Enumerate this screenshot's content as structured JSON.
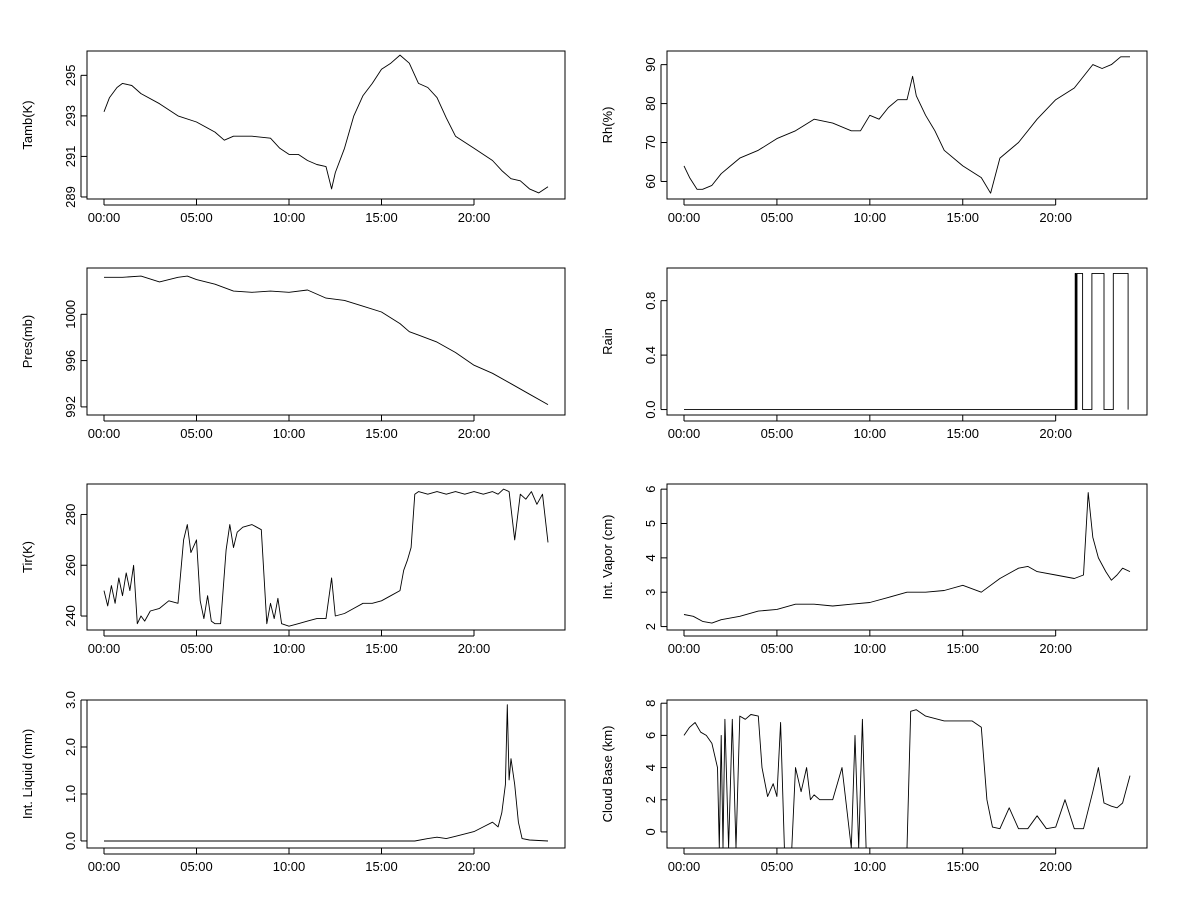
{
  "chart_data": [
    {
      "type": "line",
      "ylabel": "Tamb(K)",
      "x_ticks": [
        "00:00",
        "05:00",
        "10:00",
        "15:00",
        "20:00"
      ],
      "y_ticks": [
        "289",
        "291",
        "293",
        "295"
      ],
      "y_tick_values": [
        289,
        291,
        293,
        295
      ],
      "ylim": [
        288.9,
        296.2
      ],
      "x_range_hours": [
        0,
        24
      ],
      "series": [
        {
          "x": [
            0,
            0.3,
            0.7,
            1,
            1.5,
            2,
            3,
            4,
            5,
            6,
            6.5,
            7,
            8,
            9,
            9.5,
            10,
            10.5,
            11,
            11.5,
            12,
            12.3,
            12.5,
            13,
            13.5,
            14,
            14.5,
            15,
            15.5,
            16,
            16.5,
            17,
            17.5,
            18,
            18.5,
            19,
            20,
            21,
            21.5,
            22,
            22.5,
            23,
            23.5,
            24
          ],
          "y": [
            293.2,
            293.9,
            294.4,
            294.6,
            294.5,
            294.1,
            293.6,
            293.0,
            292.7,
            292.2,
            291.8,
            292.0,
            292.0,
            291.9,
            291.4,
            291.1,
            291.1,
            290.8,
            290.6,
            290.5,
            289.4,
            290.2,
            291.4,
            293.0,
            294.0,
            294.6,
            295.3,
            295.6,
            296.0,
            295.6,
            294.6,
            294.4,
            293.9,
            292.9,
            292.0,
            291.4,
            290.8,
            290.3,
            289.9,
            289.8,
            289.4,
            289.2,
            289.5
          ]
        }
      ]
    },
    {
      "type": "line",
      "ylabel": "Rh(%)",
      "x_ticks": [
        "00:00",
        "05:00",
        "10:00",
        "15:00",
        "20:00"
      ],
      "y_ticks": [
        "60",
        "70",
        "80",
        "90"
      ],
      "y_tick_values": [
        60,
        70,
        80,
        90
      ],
      "ylim": [
        55.5,
        93.5
      ],
      "x_range_hours": [
        0,
        24
      ],
      "series": [
        {
          "x": [
            0,
            0.3,
            0.7,
            1,
            1.5,
            2,
            2.5,
            3,
            4,
            5,
            6,
            7,
            8,
            9,
            9.5,
            10,
            10.5,
            11,
            11.5,
            12,
            12.3,
            12.5,
            13,
            13.5,
            14,
            15,
            16,
            16.5,
            17,
            18,
            19,
            20,
            21,
            22,
            22.5,
            23,
            23.5,
            24
          ],
          "y": [
            64,
            61,
            58,
            58,
            59,
            62,
            64,
            66,
            68,
            71,
            73,
            76,
            75,
            73,
            73,
            77,
            76,
            79,
            81,
            81,
            87,
            82,
            77,
            73,
            68,
            64,
            61,
            57,
            66,
            70,
            76,
            81,
            84,
            90,
            89,
            90,
            92,
            92
          ]
        }
      ]
    },
    {
      "type": "line",
      "ylabel": "Pres(mb)",
      "x_ticks": [
        "00:00",
        "05:00",
        "10:00",
        "15:00",
        "20:00"
      ],
      "y_ticks": [
        "992",
        "996",
        "1000"
      ],
      "y_tick_values": [
        992,
        996,
        1000
      ],
      "ylim": [
        991.3,
        1004.0
      ],
      "x_range_hours": [
        0,
        24
      ],
      "series": [
        {
          "x": [
            0,
            1,
            2,
            3,
            4,
            4.5,
            5,
            6,
            7,
            8,
            9,
            10,
            11,
            12,
            13,
            14,
            15,
            16,
            16.5,
            17,
            18,
            19,
            20,
            21,
            22,
            23,
            24
          ],
          "y": [
            1003.2,
            1003.2,
            1003.3,
            1002.8,
            1003.2,
            1003.3,
            1003.0,
            1002.6,
            1002.0,
            1001.9,
            1002.0,
            1001.9,
            1002.1,
            1001.4,
            1001.2,
            1000.7,
            1000.2,
            999.2,
            998.5,
            998.2,
            997.6,
            996.7,
            995.6,
            994.9,
            994.0,
            993.1,
            992.2
          ]
        }
      ]
    },
    {
      "type": "line",
      "ylabel": "Rain",
      "x_ticks": [
        "00:00",
        "05:00",
        "10:00",
        "15:00",
        "20:00"
      ],
      "y_ticks": [
        "0.0",
        "0.4",
        "0.8"
      ],
      "y_tick_values": [
        0,
        0.4,
        0.8
      ],
      "ylim": [
        -0.04,
        1.04
      ],
      "x_range_hours": [
        0,
        24
      ],
      "series": [
        {
          "x": [
            0,
            21.05,
            21.05,
            21.1,
            21.1,
            21.15,
            21.15,
            21.45,
            21.45,
            21.95,
            21.95,
            22.6,
            22.6,
            23.1,
            23.1,
            23.9,
            23.9
          ],
          "y": [
            0,
            0,
            1,
            1,
            0,
            0,
            1,
            1,
            0,
            0,
            1,
            1,
            0,
            0,
            1,
            1,
            0
          ]
        }
      ]
    },
    {
      "type": "line",
      "ylabel": "Tir(K)",
      "x_ticks": [
        "00:00",
        "05:00",
        "10:00",
        "15:00",
        "20:00"
      ],
      "y_ticks": [
        "240",
        "260",
        "280"
      ],
      "y_tick_values": [
        240,
        260,
        280
      ],
      "ylim": [
        234.5,
        292.0
      ],
      "x_range_hours": [
        0,
        24
      ],
      "series": [
        {
          "x": [
            0,
            0.2,
            0.4,
            0.6,
            0.8,
            1.0,
            1.2,
            1.4,
            1.6,
            1.8,
            2.0,
            2.2,
            2.5,
            3.0,
            3.5,
            4.0,
            4.3,
            4.5,
            4.7,
            5.0,
            5.2,
            5.4,
            5.6,
            5.8,
            6.0,
            6.3,
            6.6,
            6.8,
            7.0,
            7.2,
            7.5,
            8.0,
            8.5,
            8.8,
            9.0,
            9.2,
            9.4,
            9.6,
            10.0,
            10.5,
            11,
            11.5,
            12,
            12.3,
            12.5,
            13,
            13.5,
            14,
            14.5,
            15,
            15.5,
            16,
            16.2,
            16.4,
            16.6,
            16.8,
            17.0,
            17.5,
            18,
            18.5,
            19,
            19.5,
            20,
            20.5,
            21,
            21.3,
            21.6,
            21.9,
            22.2,
            22.5,
            22.8,
            23.1,
            23.4,
            23.7,
            24
          ],
          "y": [
            250,
            244,
            252,
            245,
            255,
            248,
            257,
            250,
            260,
            237,
            240,
            238,
            242,
            243,
            246,
            245,
            270,
            276,
            265,
            270,
            246,
            239,
            248,
            238,
            237,
            237,
            266,
            276,
            267,
            273,
            275,
            276,
            274,
            237,
            245,
            239,
            247,
            237,
            236,
            237,
            238,
            239,
            239,
            255,
            240,
            241,
            243,
            245,
            245,
            246,
            248,
            250,
            258,
            262,
            267,
            288,
            289,
            288,
            289,
            288,
            289,
            288,
            289,
            288,
            289,
            288,
            290,
            289,
            270,
            288,
            286,
            289,
            284,
            288,
            269
          ]
        }
      ]
    },
    {
      "type": "line",
      "ylabel": "Int. Vapor (cm)",
      "x_ticks": [
        "00:00",
        "05:00",
        "10:00",
        "15:00",
        "20:00"
      ],
      "y_ticks": [
        "2",
        "3",
        "4",
        "5",
        "6"
      ],
      "y_tick_values": [
        2,
        3,
        4,
        5,
        6
      ],
      "ylim": [
        1.9,
        6.15
      ],
      "x_range_hours": [
        0,
        24
      ],
      "series": [
        {
          "x": [
            0,
            0.5,
            1,
            1.5,
            2,
            3,
            4,
            5,
            6,
            7,
            8,
            9,
            10,
            11,
            12,
            13,
            14,
            15,
            16,
            17,
            18,
            18.5,
            19,
            20,
            21,
            21.5,
            21.75,
            22.0,
            22.3,
            22.7,
            23.0,
            23.3,
            23.6,
            24
          ],
          "y": [
            2.35,
            2.3,
            2.15,
            2.1,
            2.2,
            2.3,
            2.45,
            2.5,
            2.65,
            2.65,
            2.6,
            2.65,
            2.7,
            2.85,
            3.0,
            3.0,
            3.05,
            3.2,
            3.0,
            3.4,
            3.7,
            3.75,
            3.6,
            3.5,
            3.4,
            3.5,
            5.9,
            4.6,
            4.0,
            3.6,
            3.35,
            3.5,
            3.7,
            3.6
          ]
        }
      ]
    },
    {
      "type": "line",
      "ylabel": "Int. Liquid (mm)",
      "x_ticks": [
        "00:00",
        "05:00",
        "10:00",
        "15:00",
        "20:00"
      ],
      "y_ticks": [
        "0.0",
        "1.0",
        "2.0",
        "3.0"
      ],
      "y_tick_values": [
        0,
        1,
        2,
        3
      ],
      "ylim": [
        -0.15,
        3.0
      ],
      "x_range_hours": [
        0,
        24
      ],
      "series": [
        {
          "x": [
            0,
            16.8,
            17.5,
            18,
            18.5,
            19,
            19.5,
            20,
            20.5,
            21,
            21.3,
            21.5,
            21.7,
            21.8,
            21.9,
            22.0,
            22.2,
            22.4,
            22.6,
            23,
            24
          ],
          "y": [
            0,
            0,
            0.05,
            0.08,
            0.05,
            0.1,
            0.15,
            0.2,
            0.3,
            0.4,
            0.3,
            0.6,
            1.2,
            2.9,
            1.3,
            1.75,
            1.2,
            0.4,
            0.05,
            0.02,
            0
          ]
        }
      ]
    },
    {
      "type": "line",
      "ylabel": "Cloud Base (km)",
      "x_ticks": [
        "00:00",
        "05:00",
        "10:00",
        "15:00",
        "20:00"
      ],
      "y_ticks": [
        "0",
        "2",
        "4",
        "6",
        "8"
      ],
      "y_tick_values": [
        0,
        2,
        4,
        6,
        8
      ],
      "ylim": [
        -1.0,
        8.2
      ],
      "x_range_hours": [
        0,
        24
      ],
      "series": [
        {
          "x": [
            0,
            0.3,
            0.6,
            0.9,
            1.2,
            1.5,
            1.8,
            1.9,
            2.0,
            2.1,
            2.2,
            2.4,
            2.6,
            2.8,
            3.0,
            3.3,
            3.6,
            4.0,
            4.2,
            4.5,
            4.8,
            5.0,
            5.2,
            5.4,
            5.6,
            5.8,
            6.0,
            6.3,
            6.6,
            6.8,
            7.0,
            7.3,
            7.6,
            8.0,
            8.5,
            9.0,
            9.2,
            9.4,
            9.6,
            9.8,
            10.0,
            11.0,
            12.0,
            12.2,
            12.5,
            13.0,
            14.0,
            15.0,
            15.5,
            16.0,
            16.3,
            16.6,
            17.0,
            17.5,
            18.0,
            18.5,
            19.0,
            19.5,
            20.0,
            20.5,
            21.0,
            21.5,
            22.0,
            22.3,
            22.6,
            23.0,
            23.3,
            23.6,
            24.0
          ],
          "y": [
            6.0,
            6.5,
            6.8,
            6.2,
            6.0,
            5.5,
            4.0,
            -1.0,
            6.0,
            -1.0,
            7.0,
            -1.0,
            7.0,
            -1.0,
            7.2,
            7.0,
            7.3,
            7.2,
            4.0,
            2.2,
            3.0,
            2.2,
            6.8,
            -1.0,
            -1.0,
            -1.0,
            4.0,
            2.5,
            4.0,
            2.0,
            2.3,
            2.0,
            2.0,
            2.0,
            4.0,
            -1.0,
            6.0,
            -1.0,
            7.0,
            -1.0,
            -1.0,
            -1.0,
            -1.0,
            7.5,
            7.6,
            7.2,
            6.9,
            6.9,
            6.9,
            6.5,
            2.0,
            0.3,
            0.2,
            1.5,
            0.2,
            0.2,
            1.0,
            0.2,
            0.3,
            2.0,
            0.2,
            0.2,
            2.5,
            4.0,
            1.8,
            1.6,
            1.5,
            1.8,
            3.5
          ]
        }
      ]
    }
  ]
}
